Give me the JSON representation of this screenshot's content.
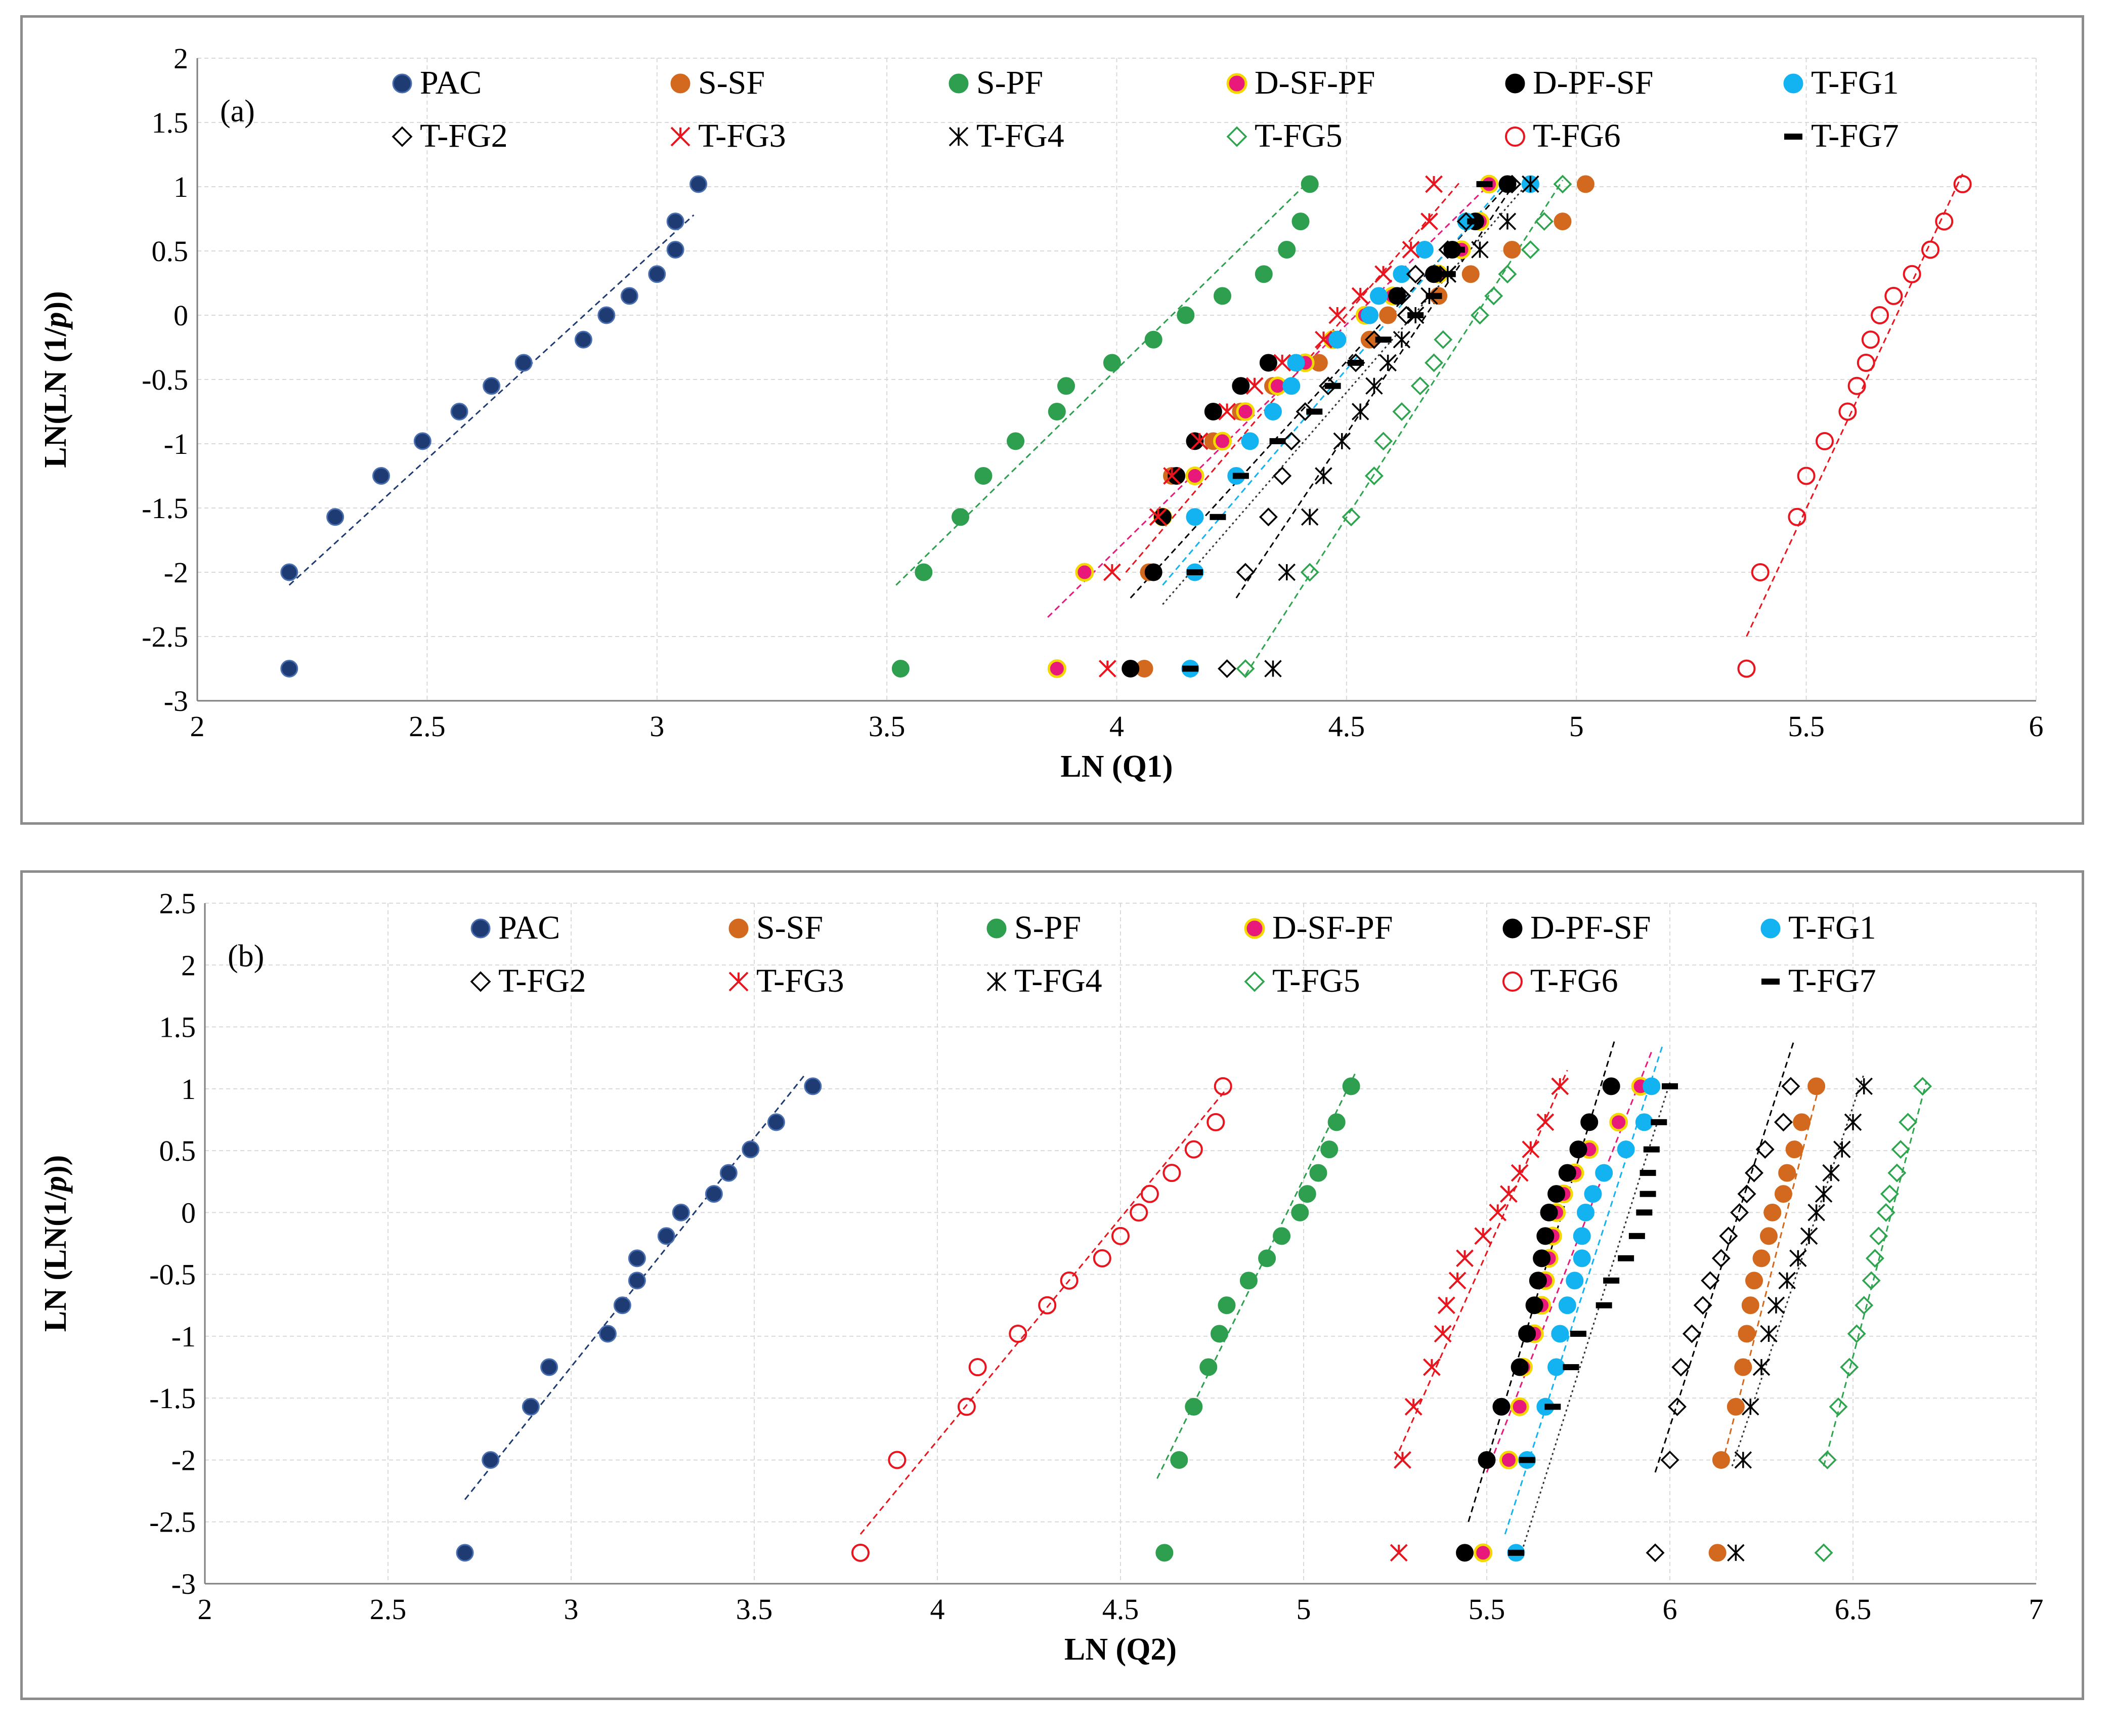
{
  "colors": {
    "PAC": "#1f3b73",
    "S-SF": "#d2691e",
    "S-PF": "#2e9e4f",
    "D-SF-PF": "#e8197a",
    "D-PF-SF": "#000000",
    "T-FG1": "#12b3f0",
    "T-FG2": "#000000",
    "T-FG3": "#e8141e",
    "T-FG4": "#000000",
    "T-FG5": "#2ea44f",
    "T-FG6": "#e8141e",
    "T-FG7": "#000000"
  },
  "chart_data": [
    {
      "type": "scatter",
      "panel_label": "(a)",
      "xlabel": "LN (Q1)",
      "ylabel": "LN(LN (1/p))",
      "xlim": [
        2,
        6
      ],
      "ylim": [
        -3,
        2
      ],
      "x_ticks": [
        "2",
        "2.5",
        "3",
        "3.5",
        "4",
        "4.5",
        "5",
        "5.5",
        "6"
      ],
      "y_ticks": [
        "2",
        "1.5",
        "1",
        "0.5",
        "0",
        "-0.5",
        "-1",
        "-1.5",
        "-2",
        "-2.5",
        "-3"
      ],
      "grid": true,
      "legend": [
        "PAC",
        "S-SF",
        "S-PF",
        "D-SF-PF",
        "D-PF-SF",
        "T-FG1",
        "T-FG2",
        "T-FG3",
        "T-FG4",
        "T-FG5",
        "T-FG6",
        "T-FG7"
      ],
      "y_levels": [
        -2.75,
        -2.0,
        -1.57,
        -1.25,
        -0.98,
        -0.75,
        -0.55,
        -0.37,
        -0.19,
        0.0,
        0.15,
        0.32,
        0.51,
        0.73,
        1.02
      ],
      "series": [
        {
          "name": "PAC",
          "x": [
            2.2,
            2.2,
            2.3,
            2.4,
            2.49,
            2.57,
            2.64,
            2.71,
            2.84,
            2.89,
            2.94,
            3.0,
            3.04,
            3.04,
            3.09
          ],
          "trend": [
            [
              2.2,
              -2.1
            ],
            [
              3.08,
              0.78
            ]
          ]
        },
        {
          "name": "S-SF",
          "x": [
            4.06,
            4.07,
            4.1,
            4.12,
            4.21,
            4.27,
            4.34,
            4.44,
            4.55,
            4.59,
            4.7,
            4.77,
            4.86,
            4.97,
            5.02
          ],
          "trend": null
        },
        {
          "name": "S-PF",
          "x": [
            3.53,
            3.58,
            3.66,
            3.71,
            3.78,
            3.87,
            3.89,
            3.99,
            4.08,
            4.15,
            4.23,
            4.32,
            4.37,
            4.4,
            4.42
          ],
          "trend": [
            [
              3.52,
              -2.1
            ],
            [
              4.42,
              1.05
            ]
          ]
        },
        {
          "name": "D-SF-PF",
          "x": [
            3.87,
            3.93,
            4.1,
            4.17,
            4.23,
            4.28,
            4.35,
            4.41,
            4.47,
            4.54,
            4.6,
            4.7,
            4.75,
            4.79,
            4.81
          ],
          "trend": [
            [
              3.85,
              -2.35
            ],
            [
              4.82,
              1.05
            ]
          ]
        },
        {
          "name": "D-PF-SF",
          "x": [
            4.03,
            4.08,
            4.1,
            4.13,
            4.17,
            4.21,
            4.27,
            4.33,
            4.48,
            4.55,
            4.61,
            4.69,
            4.73,
            4.78,
            4.85
          ],
          "trend": [
            [
              4.03,
              -2.2
            ],
            [
              4.86,
              1.05
            ]
          ]
        },
        {
          "name": "T-FG1",
          "x": [
            4.16,
            4.17,
            4.17,
            4.26,
            4.29,
            4.34,
            4.38,
            4.39,
            4.48,
            4.55,
            4.57,
            4.62,
            4.67,
            4.76,
            4.9
          ],
          "trend": [
            [
              4.1,
              -2.1
            ],
            [
              4.85,
              1.05
            ]
          ]
        },
        {
          "name": "T-FG2",
          "x": [
            4.24,
            4.28,
            4.33,
            4.36,
            4.38,
            4.41,
            4.46,
            4.52,
            4.56,
            4.63,
            4.62,
            4.65,
            4.72,
            4.76,
            4.86
          ],
          "trend": [
            [
              4.26,
              -2.2
            ],
            [
              4.87,
              1.05
            ]
          ]
        },
        {
          "name": "T-FG3",
          "x": [
            3.98,
            3.99,
            4.09,
            4.12,
            4.18,
            4.24,
            4.3,
            4.36,
            4.45,
            4.48,
            4.53,
            4.58,
            4.64,
            4.68,
            4.69
          ],
          "trend": [
            [
              4.02,
              -2.0
            ],
            [
              4.75,
              1.05
            ]
          ]
        },
        {
          "name": "T-FG4",
          "x": [
            4.34,
            4.37,
            4.42,
            4.45,
            4.49,
            4.53,
            4.56,
            4.59,
            4.62,
            4.65,
            4.68,
            4.72,
            4.79,
            4.85,
            4.9
          ],
          "trend": [
            [
              4.1,
              -2.25
            ],
            [
              4.9,
              1.05
            ]
          ]
        },
        {
          "name": "T-FG5",
          "x": [
            4.28,
            4.42,
            4.51,
            4.56,
            4.58,
            4.62,
            4.66,
            4.69,
            4.71,
            4.79,
            4.82,
            4.85,
            4.9,
            4.93,
            4.97
          ],
          "trend": [
            [
              4.28,
              -2.8
            ],
            [
              4.97,
              1.05
            ]
          ]
        },
        {
          "name": "T-FG6",
          "x": [
            5.37,
            5.4,
            5.48,
            5.5,
            5.54,
            5.59,
            5.61,
            5.63,
            5.64,
            5.66,
            5.69,
            5.73,
            5.77,
            5.8,
            5.84
          ],
          "trend": [
            [
              5.37,
              -2.5
            ],
            [
              5.84,
              1.1
            ]
          ]
        },
        {
          "name": "T-FG7",
          "x": [
            4.16,
            4.17,
            4.22,
            4.27,
            4.35,
            4.43,
            4.47,
            4.52,
            4.58,
            4.65,
            4.69,
            4.72,
            4.74,
            4.78,
            4.8
          ],
          "trend": null
        }
      ]
    },
    {
      "type": "scatter",
      "panel_label": "(b)",
      "xlabel": "LN (Q2)",
      "ylabel": "LN (LN(1/p))",
      "xlim": [
        2,
        7
      ],
      "ylim": [
        -3,
        2.5
      ],
      "x_ticks": [
        "2",
        "2.5",
        "3",
        "3.5",
        "4",
        "4.5",
        "5",
        "5.5",
        "6",
        "6.5",
        "7"
      ],
      "y_ticks": [
        "2.5",
        "2",
        "1.5",
        "1",
        "0.5",
        "0",
        "-0.5",
        "-1",
        "-1.5",
        "-2",
        "-2.5",
        "-3"
      ],
      "grid": true,
      "legend": [
        "PAC",
        "S-SF",
        "S-PF",
        "D-SF-PF",
        "D-PF-SF",
        "T-FG1",
        "T-FG2",
        "T-FG3",
        "T-FG4",
        "T-FG5",
        "T-FG6",
        "T-FG7"
      ],
      "y_levels": [
        -2.75,
        -2.0,
        -1.57,
        -1.25,
        -0.98,
        -0.75,
        -0.55,
        -0.37,
        -0.19,
        0.0,
        0.15,
        0.32,
        0.51,
        0.73,
        1.02
      ],
      "series": [
        {
          "name": "PAC",
          "x": [
            2.71,
            2.78,
            2.89,
            2.94,
            3.1,
            3.14,
            3.18,
            3.18,
            3.26,
            3.3,
            3.39,
            3.43,
            3.49,
            3.56,
            3.66
          ],
          "trend": [
            [
              2.71,
              -2.32
            ],
            [
              3.64,
              1.12
            ]
          ]
        },
        {
          "name": "S-SF",
          "x": [
            6.13,
            6.14,
            6.18,
            6.2,
            6.21,
            6.22,
            6.23,
            6.25,
            6.27,
            6.28,
            6.31,
            6.32,
            6.34,
            6.36,
            6.4
          ],
          "trend": [
            [
              6.15,
              -1.95
            ],
            [
              6.41,
              1.05
            ]
          ]
        },
        {
          "name": "S-PF",
          "x": [
            4.62,
            4.66,
            4.7,
            4.74,
            4.77,
            4.79,
            4.85,
            4.9,
            4.94,
            4.99,
            5.01,
            5.04,
            5.07,
            5.09,
            5.13
          ],
          "trend": [
            [
              4.6,
              -2.15
            ],
            [
              5.14,
              1.12
            ]
          ]
        },
        {
          "name": "D-SF-PF",
          "x": [
            5.49,
            5.56,
            5.59,
            5.6,
            5.63,
            5.65,
            5.66,
            5.67,
            5.68,
            5.69,
            5.71,
            5.74,
            5.78,
            5.86,
            5.92
          ],
          "trend": [
            [
              5.5,
              -2.1
            ],
            [
              5.95,
              1.3
            ]
          ]
        },
        {
          "name": "D-PF-SF",
          "x": [
            5.44,
            5.5,
            5.54,
            5.59,
            5.61,
            5.63,
            5.64,
            5.65,
            5.66,
            5.67,
            5.69,
            5.72,
            5.75,
            5.78,
            5.84
          ],
          "trend": [
            [
              5.45,
              -2.5
            ],
            [
              5.85,
              1.4
            ]
          ]
        },
        {
          "name": "T-FG1",
          "x": [
            5.58,
            5.61,
            5.66,
            5.69,
            5.7,
            5.72,
            5.74,
            5.76,
            5.76,
            5.77,
            5.79,
            5.82,
            5.88,
            5.93,
            5.95
          ],
          "trend": [
            [
              5.55,
              -2.6
            ],
            [
              5.98,
              1.35
            ]
          ]
        },
        {
          "name": "T-FG2",
          "x": [
            5.96,
            6.0,
            6.02,
            6.03,
            6.06,
            6.09,
            6.11,
            6.14,
            6.16,
            6.19,
            6.21,
            6.23,
            6.26,
            6.31,
            6.33
          ],
          "trend": [
            [
              5.96,
              -2.1
            ],
            [
              6.34,
              1.4
            ]
          ]
        },
        {
          "name": "T-FG3",
          "x": [
            5.26,
            5.27,
            5.3,
            5.35,
            5.38,
            5.39,
            5.42,
            5.44,
            5.49,
            5.53,
            5.56,
            5.59,
            5.62,
            5.66,
            5.7
          ],
          "trend": [
            [
              5.25,
              -2.0
            ],
            [
              5.72,
              1.15
            ]
          ]
        },
        {
          "name": "T-FG4",
          "x": [
            6.18,
            6.2,
            6.22,
            6.25,
            6.27,
            6.29,
            6.32,
            6.35,
            6.38,
            6.4,
            6.42,
            6.44,
            6.47,
            6.5,
            6.53
          ],
          "trend": [
            [
              6.17,
              -2.05
            ],
            [
              6.53,
              1.12
            ]
          ]
        },
        {
          "name": "T-FG5",
          "x": [
            6.42,
            6.43,
            6.46,
            6.49,
            6.51,
            6.53,
            6.55,
            6.56,
            6.57,
            6.59,
            6.6,
            6.62,
            6.63,
            6.65,
            6.69
          ],
          "trend": [
            [
              6.42,
              -2.05
            ],
            [
              6.7,
              1.05
            ]
          ]
        },
        {
          "name": "T-FG6",
          "x": [
            3.79,
            3.89,
            4.08,
            4.11,
            4.22,
            4.3,
            4.36,
            4.45,
            4.5,
            4.55,
            4.58,
            4.64,
            4.7,
            4.76,
            4.78
          ],
          "trend": [
            [
              3.79,
              -2.6
            ],
            [
              4.79,
              1.0
            ]
          ]
        },
        {
          "name": "T-FG7",
          "x": [
            5.58,
            5.61,
            5.68,
            5.73,
            5.75,
            5.82,
            5.84,
            5.88,
            5.91,
            5.93,
            5.94,
            5.94,
            5.95,
            5.97,
            6.0
          ],
          "trend": [
            [
              5.6,
              -2.7
            ],
            [
              6.0,
              1.05
            ]
          ]
        }
      ]
    }
  ]
}
